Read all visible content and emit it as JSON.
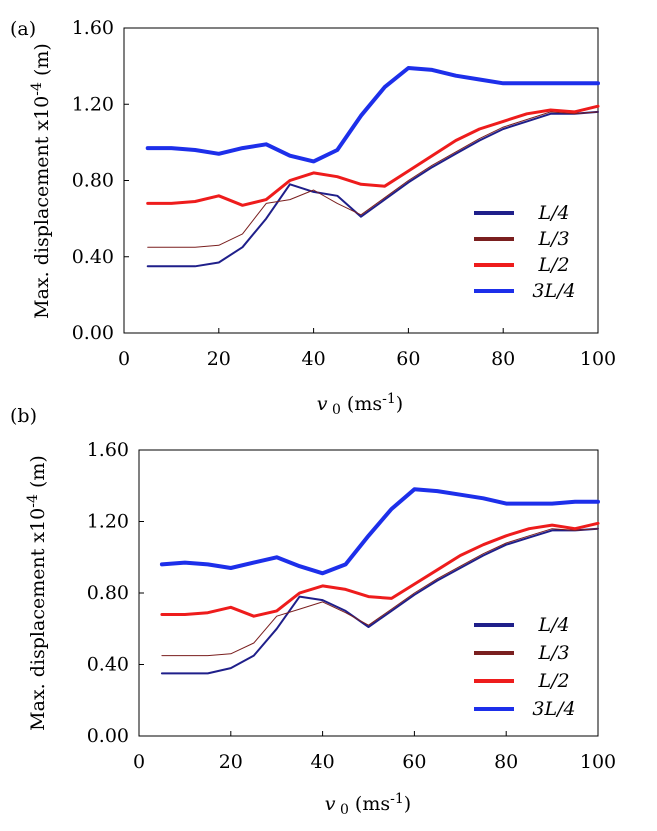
{
  "chart_data": [
    {
      "type": "line",
      "panel_label": "(a)",
      "xlabel": "v",
      "xlabel_sub": "0",
      "xlabel_unit": "(ms",
      "xlabel_unit_sup": "-1",
      "xlabel_unit_close": ")",
      "ylabel": "Max. displacement x10",
      "ylabel_sup": "-4",
      "ylabel_unit": " (m)",
      "xlim": [
        0,
        100
      ],
      "ylim": [
        0,
        1.6
      ],
      "xticks": [
        "0",
        "20",
        "40",
        "60",
        "80",
        "100"
      ],
      "yticks": [
        "0.00",
        "0.40",
        "0.80",
        "1.20",
        "1.60"
      ],
      "legend_position": "bottom-right",
      "series": [
        {
          "name": "L/4",
          "color": "#1f1f8a",
          "x": [
            5,
            10,
            15,
            20,
            25,
            30,
            35,
            40,
            45,
            50,
            55,
            60,
            65,
            70,
            75,
            80,
            85,
            90,
            95,
            100
          ],
          "y": [
            0.35,
            0.35,
            0.35,
            0.37,
            0.45,
            0.6,
            0.78,
            0.74,
            0.72,
            0.61,
            0.7,
            0.79,
            0.87,
            0.94,
            1.01,
            1.07,
            1.11,
            1.15,
            1.15,
            1.16
          ]
        },
        {
          "name": "L/3",
          "color": "#7a1f1f",
          "x": [
            5,
            10,
            15,
            20,
            25,
            30,
            35,
            40,
            45,
            50,
            55,
            60,
            65,
            70,
            75,
            80,
            85,
            90,
            95,
            100
          ],
          "y": [
            0.45,
            0.45,
            0.45,
            0.46,
            0.52,
            0.68,
            0.7,
            0.75,
            0.68,
            0.62,
            0.71,
            0.8,
            0.88,
            0.95,
            1.02,
            1.08,
            1.12,
            1.16,
            1.15,
            1.16
          ]
        },
        {
          "name": "L/2",
          "color": "#ee1c1c",
          "x": [
            5,
            10,
            15,
            20,
            25,
            30,
            35,
            40,
            45,
            50,
            55,
            60,
            65,
            70,
            75,
            80,
            85,
            90,
            95,
            100
          ],
          "y": [
            0.68,
            0.68,
            0.69,
            0.72,
            0.67,
            0.7,
            0.8,
            0.84,
            0.82,
            0.78,
            0.77,
            0.85,
            0.93,
            1.01,
            1.07,
            1.11,
            1.15,
            1.17,
            1.16,
            1.19
          ]
        },
        {
          "name": "3L/4",
          "color": "#1d2fea",
          "x": [
            5,
            10,
            15,
            20,
            25,
            30,
            35,
            40,
            45,
            50,
            55,
            60,
            65,
            70,
            75,
            80,
            85,
            90,
            95,
            100
          ],
          "y": [
            0.97,
            0.97,
            0.96,
            0.94,
            0.97,
            0.99,
            0.93,
            0.9,
            0.96,
            1.14,
            1.29,
            1.39,
            1.38,
            1.35,
            1.33,
            1.31,
            1.31,
            1.31,
            1.31,
            1.31
          ]
        }
      ]
    },
    {
      "type": "line",
      "panel_label": "(b)",
      "xlabel": "v",
      "xlabel_sub": "0",
      "xlabel_unit": "(ms",
      "xlabel_unit_sup": "-1",
      "xlabel_unit_close": ")",
      "ylabel": "Max. displacement x10",
      "ylabel_sup": "-4",
      "ylabel_unit": " (m)",
      "xlim": [
        0,
        100
      ],
      "ylim": [
        0,
        1.6
      ],
      "xticks": [
        "0",
        "20",
        "40",
        "60",
        "80",
        "100"
      ],
      "yticks": [
        "0.00",
        "0.40",
        "0.80",
        "1.20",
        "1.60"
      ],
      "legend_position": "bottom-right",
      "series": [
        {
          "name": "L/4",
          "color": "#1f1f8a",
          "x": [
            5,
            10,
            15,
            20,
            25,
            30,
            35,
            40,
            45,
            50,
            55,
            60,
            65,
            70,
            75,
            80,
            85,
            90,
            95,
            100
          ],
          "y": [
            0.35,
            0.35,
            0.35,
            0.38,
            0.45,
            0.6,
            0.78,
            0.76,
            0.7,
            0.61,
            0.7,
            0.79,
            0.87,
            0.94,
            1.01,
            1.07,
            1.11,
            1.15,
            1.15,
            1.16
          ]
        },
        {
          "name": "L/3",
          "color": "#7a1f1f",
          "x": [
            5,
            10,
            15,
            20,
            25,
            30,
            35,
            40,
            45,
            50,
            55,
            60,
            65,
            70,
            75,
            80,
            85,
            90,
            95,
            100
          ],
          "y": [
            0.45,
            0.45,
            0.45,
            0.46,
            0.52,
            0.67,
            0.71,
            0.75,
            0.69,
            0.62,
            0.71,
            0.8,
            0.88,
            0.95,
            1.02,
            1.08,
            1.12,
            1.16,
            1.15,
            1.16
          ]
        },
        {
          "name": "L/2",
          "color": "#ee1c1c",
          "x": [
            5,
            10,
            15,
            20,
            25,
            30,
            35,
            40,
            45,
            50,
            55,
            60,
            65,
            70,
            75,
            80,
            85,
            90,
            95,
            100
          ],
          "y": [
            0.68,
            0.68,
            0.69,
            0.72,
            0.67,
            0.7,
            0.8,
            0.84,
            0.82,
            0.78,
            0.77,
            0.85,
            0.93,
            1.01,
            1.07,
            1.12,
            1.16,
            1.18,
            1.16,
            1.19
          ]
        },
        {
          "name": "3L/4",
          "color": "#1d2fea",
          "x": [
            5,
            10,
            15,
            20,
            25,
            30,
            35,
            40,
            45,
            50,
            55,
            60,
            65,
            70,
            75,
            80,
            85,
            90,
            95,
            100
          ],
          "y": [
            0.96,
            0.97,
            0.96,
            0.94,
            0.97,
            1.0,
            0.95,
            0.91,
            0.96,
            1.12,
            1.27,
            1.38,
            1.37,
            1.35,
            1.33,
            1.3,
            1.3,
            1.3,
            1.31,
            1.31
          ]
        }
      ]
    }
  ]
}
